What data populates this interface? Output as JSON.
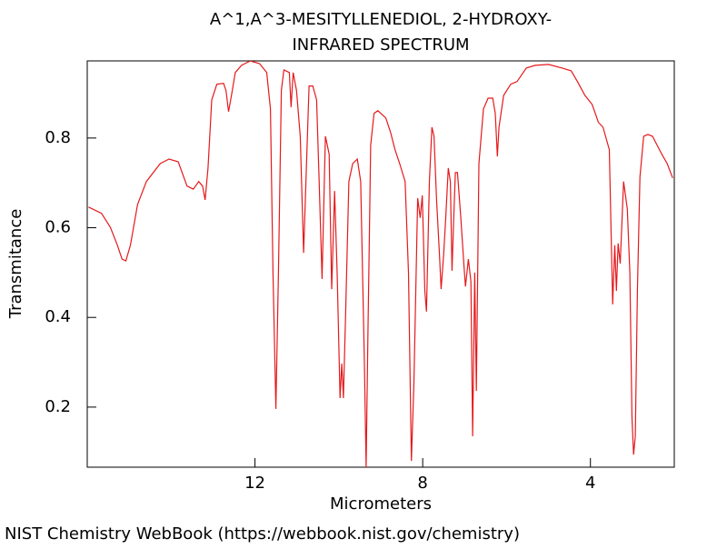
{
  "chart_data": {
    "type": "line",
    "title": "A^1,A^3-MESITYLLENEDIOL, 2-HYDROXY-",
    "subtitle": "INFRARED SPECTRUM",
    "x_label": "Micrometers",
    "y_label": "Transmitance",
    "source": "NIST Chemistry WebBook (https://webbook.nist.gov/chemistry)",
    "xlim": [
      16,
      2
    ],
    "ylim": [
      0.066,
      0.972
    ],
    "xticks": [
      12,
      8,
      4
    ],
    "yticks": [
      0.2,
      0.4,
      0.6,
      0.8
    ],
    "grid": false,
    "series": [
      {
        "color": "#e41a1c",
        "x": [
          15.97,
          15.66,
          15.45,
          15.28,
          15.17,
          15.08,
          14.97,
          14.8,
          14.59,
          14.26,
          14.05,
          13.83,
          13.62,
          13.47,
          13.34,
          13.25,
          13.19,
          13.12,
          13.03,
          12.91,
          12.75,
          12.69,
          12.63,
          12.56,
          12.47,
          12.32,
          12.11,
          11.89,
          11.72,
          11.63,
          11.57,
          11.5,
          11.44,
          11.37,
          11.31,
          11.18,
          11.14,
          11.09,
          11.01,
          10.92,
          10.84,
          10.77,
          10.71,
          10.62,
          10.53,
          10.47,
          10.4,
          10.36,
          10.32,
          10.23,
          10.17,
          10.1,
          10.04,
          9.97,
          9.93,
          9.89,
          9.84,
          9.76,
          9.67,
          9.56,
          9.48,
          9.39,
          9.35,
          9.31,
          9.24,
          9.16,
          9.07,
          8.88,
          8.77,
          8.66,
          8.55,
          8.42,
          8.34,
          8.27,
          8.21,
          8.12,
          8.06,
          8.01,
          7.95,
          7.91,
          7.84,
          7.78,
          7.73,
          7.67,
          7.6,
          7.56,
          7.5,
          7.45,
          7.39,
          7.34,
          7.3,
          7.26,
          7.22,
          7.17,
          7.09,
          7.02,
          6.98,
          6.91,
          6.85,
          6.81,
          6.76,
          6.72,
          6.66,
          6.55,
          6.44,
          6.33,
          6.27,
          6.22,
          6.18,
          6.07,
          5.9,
          5.75,
          5.53,
          5.32,
          5.0,
          4.67,
          4.46,
          4.31,
          4.13,
          3.96,
          3.81,
          3.7,
          3.55,
          3.47,
          3.42,
          3.38,
          3.34,
          3.29,
          3.21,
          3.12,
          3.06,
          3.01,
          2.97,
          2.93,
          2.88,
          2.82,
          2.73,
          2.63,
          2.52,
          2.3,
          2.17,
          2.04
        ],
        "values": [
          0.646,
          0.632,
          0.601,
          0.561,
          0.53,
          0.526,
          0.561,
          0.652,
          0.703,
          0.743,
          0.753,
          0.747,
          0.693,
          0.686,
          0.703,
          0.693,
          0.662,
          0.733,
          0.885,
          0.92,
          0.922,
          0.906,
          0.859,
          0.895,
          0.946,
          0.962,
          0.972,
          0.966,
          0.946,
          0.865,
          0.5,
          0.196,
          0.5,
          0.906,
          0.952,
          0.946,
          0.869,
          0.946,
          0.906,
          0.804,
          0.544,
          0.743,
          0.916,
          0.916,
          0.885,
          0.703,
          0.486,
          0.642,
          0.804,
          0.764,
          0.463,
          0.682,
          0.5,
          0.22,
          0.297,
          0.22,
          0.398,
          0.703,
          0.743,
          0.753,
          0.703,
          0.297,
          0.066,
          0.338,
          0.784,
          0.855,
          0.861,
          0.845,
          0.814,
          0.774,
          0.743,
          0.703,
          0.5,
          0.08,
          0.256,
          0.666,
          0.622,
          0.672,
          0.459,
          0.413,
          0.703,
          0.824,
          0.804,
          0.662,
          0.54,
          0.463,
          0.54,
          0.622,
          0.733,
          0.703,
          0.504,
          0.622,
          0.723,
          0.723,
          0.622,
          0.52,
          0.469,
          0.53,
          0.48,
          0.135,
          0.5,
          0.236,
          0.743,
          0.865,
          0.889,
          0.889,
          0.855,
          0.759,
          0.824,
          0.895,
          0.92,
          0.926,
          0.956,
          0.962,
          0.964,
          0.956,
          0.95,
          0.926,
          0.895,
          0.875,
          0.835,
          0.824,
          0.774,
          0.429,
          0.561,
          0.459,
          0.565,
          0.52,
          0.703,
          0.642,
          0.5,
          0.179,
          0.094,
          0.135,
          0.459,
          0.713,
          0.804,
          0.808,
          0.804,
          0.764,
          0.743,
          0.711
        ]
      }
    ]
  }
}
